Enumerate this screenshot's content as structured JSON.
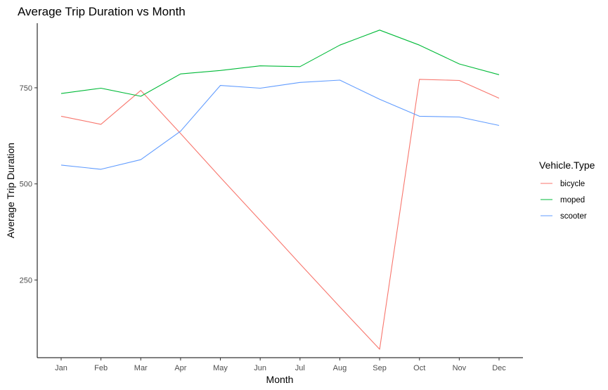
{
  "chart_data": {
    "type": "line",
    "title": "Average Trip Duration vs Month",
    "xlabel": "Month",
    "ylabel": "Average Trip Duration",
    "categories": [
      "Jan",
      "Feb",
      "Mar",
      "Apr",
      "May",
      "Jun",
      "Jul",
      "Aug",
      "Sep",
      "Oct",
      "Nov",
      "Dec"
    ],
    "yticks": [
      250,
      500,
      750
    ],
    "ylim": [
      48,
      918
    ],
    "grid": false,
    "legend": {
      "title": "Vehicle.Type",
      "position": "right"
    },
    "series": [
      {
        "name": "bicycle",
        "color": "#F8766D",
        "values": [
          676,
          655,
          743,
          631,
          517,
          405,
          292,
          180,
          70,
          772,
          769,
          723
        ]
      },
      {
        "name": "moped",
        "color": "#00BA38",
        "values": [
          735,
          749,
          728,
          786,
          795,
          807,
          805,
          861,
          900,
          861,
          812,
          784
        ]
      },
      {
        "name": "scooter",
        "color": "#619CFF",
        "values": [
          549,
          538,
          563,
          637,
          756,
          749,
          764,
          770,
          720,
          676,
          674,
          652
        ]
      }
    ]
  }
}
